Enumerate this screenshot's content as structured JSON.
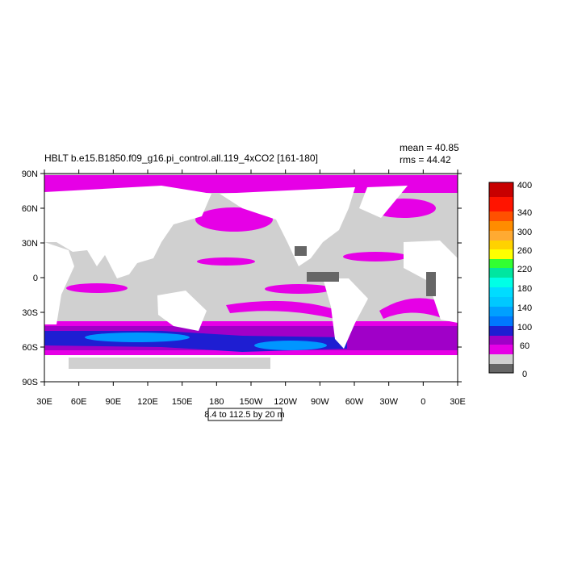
{
  "header": {
    "title": "HBLT b.e15.B1850.f09_g16.pi_control.all.119_4xCO2 [161-180]",
    "mean": "mean = 40.85",
    "rms": "rms = 44.42"
  },
  "axes": {
    "x_labels": [
      "30E",
      "60E",
      "90E",
      "120E",
      "150E",
      "180",
      "150W",
      "120W",
      "90W",
      "60W",
      "30W",
      "0",
      "30E"
    ],
    "y_labels": [
      "90N",
      "60N",
      "30N",
      "0",
      "30S",
      "60S",
      "90S"
    ]
  },
  "colorbar": {
    "labels": [
      "400",
      "340",
      "300",
      "260",
      "220",
      "180",
      "140",
      "100",
      "60",
      "0"
    ]
  },
  "info": "8.4 to 112.5 by 20 m"
}
